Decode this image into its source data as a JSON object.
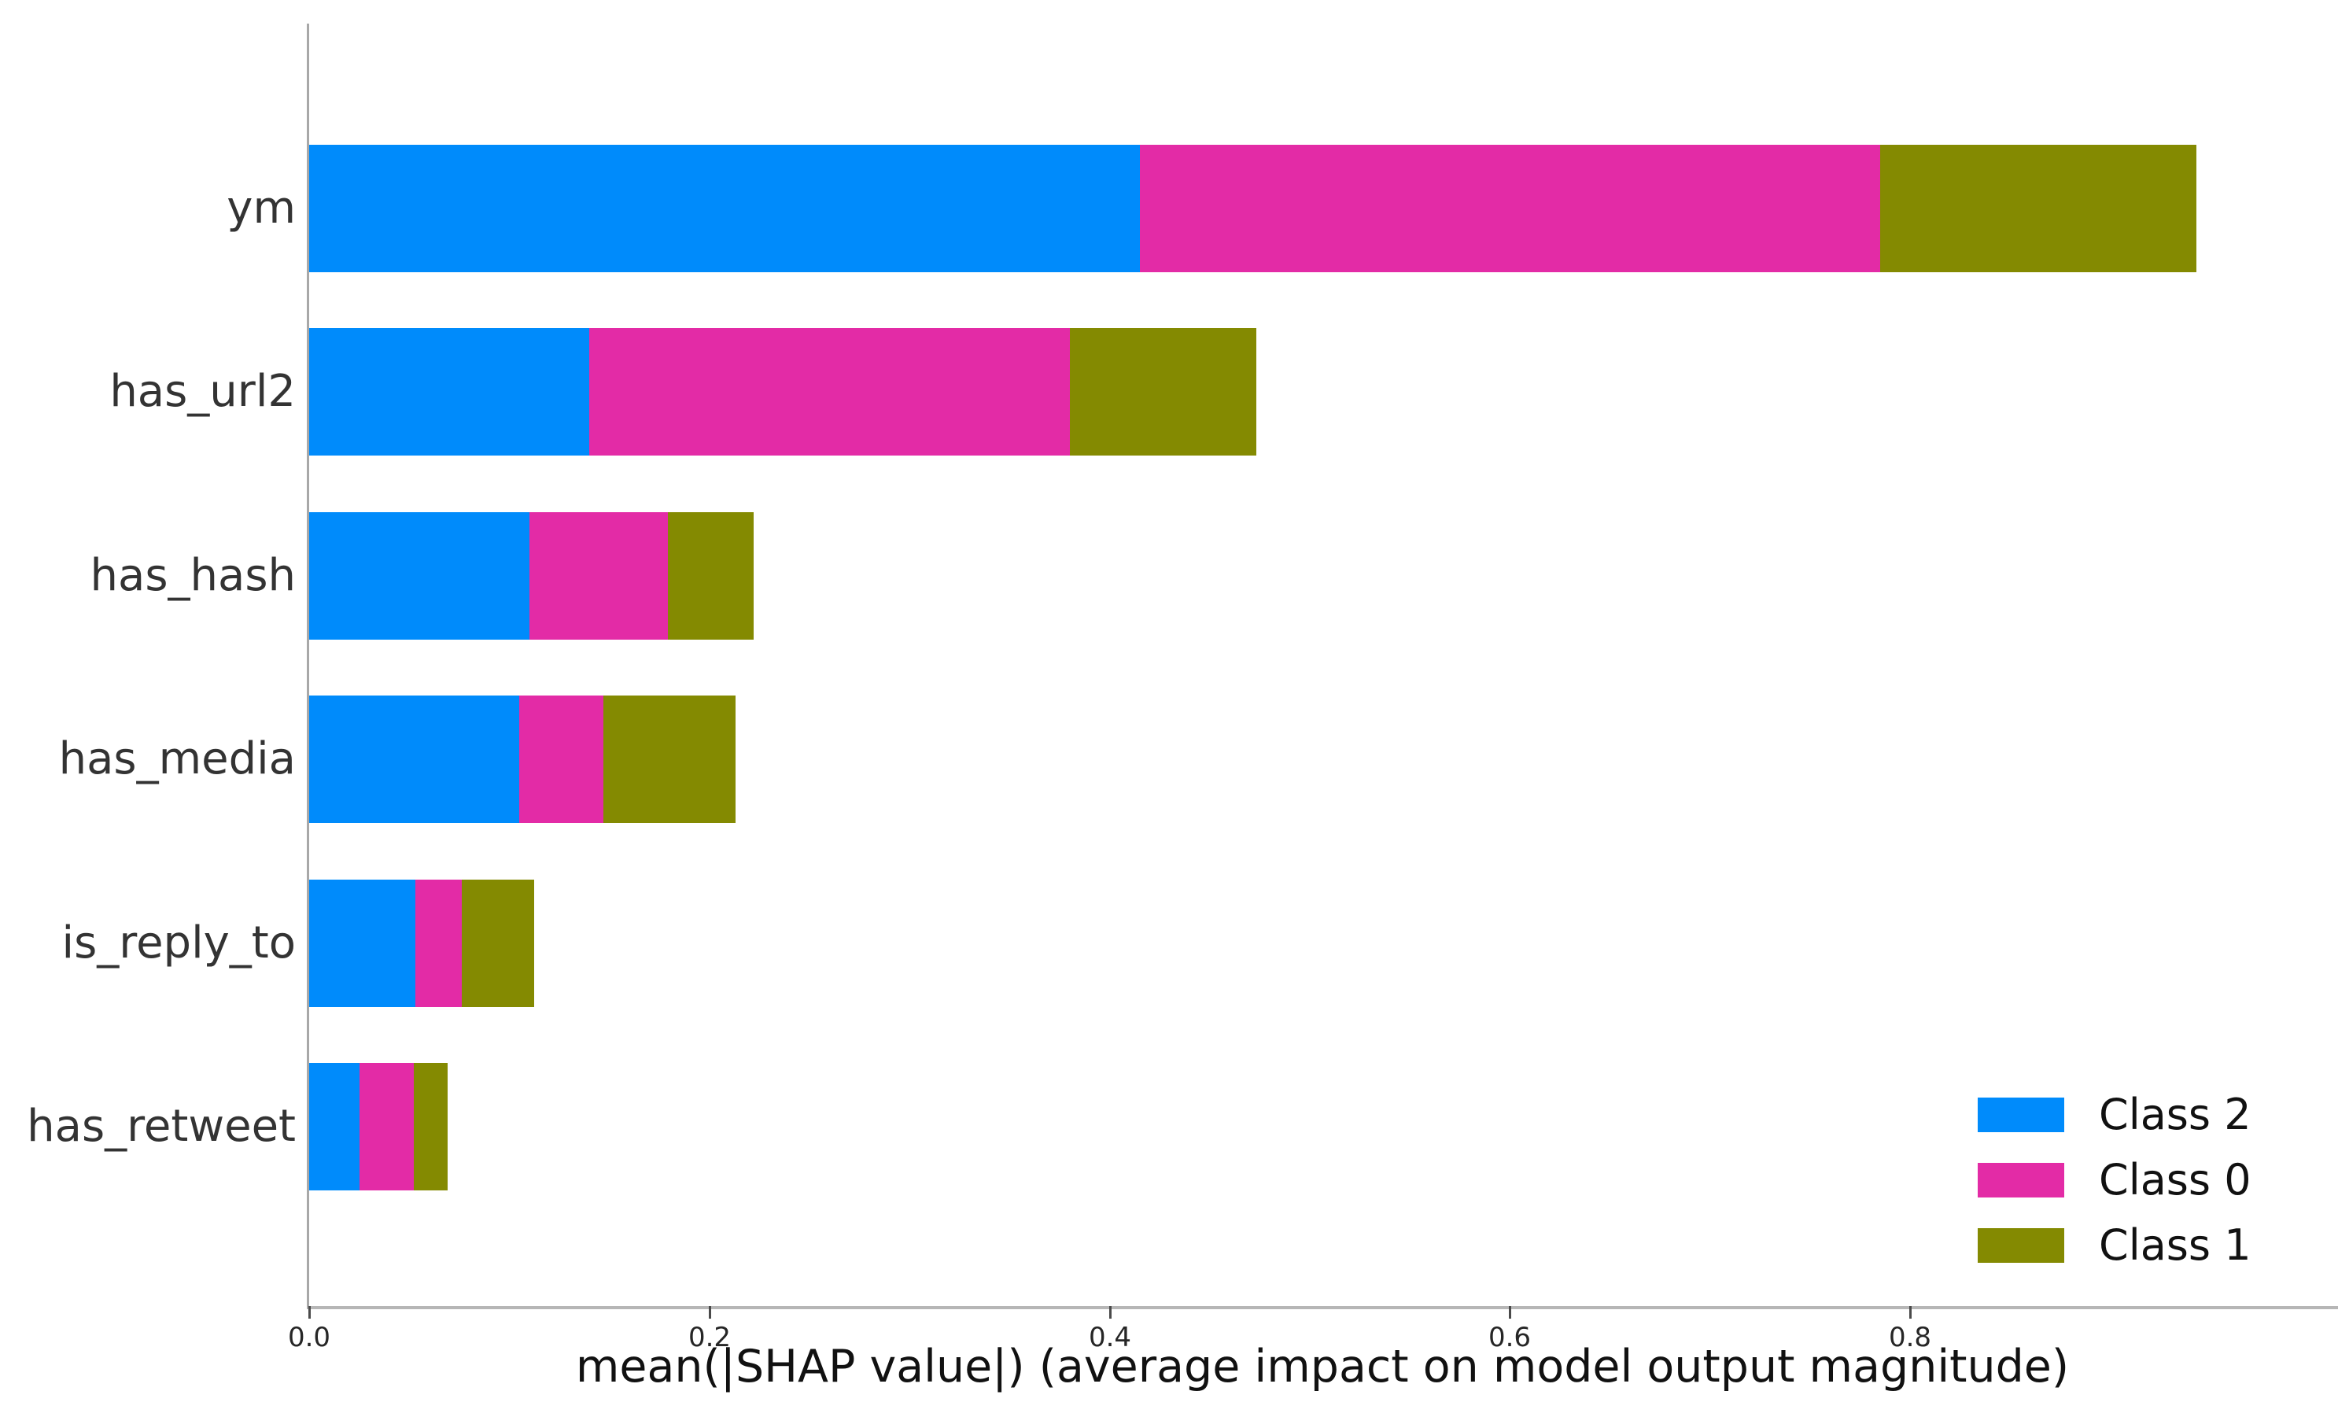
{
  "chart_data": {
    "type": "bar",
    "orientation": "horizontal",
    "stacked": true,
    "title": "",
    "xlabel": "mean(|SHAP value|) (average impact on model output magnitude)",
    "ylabel": "",
    "categories": [
      "ym",
      "has_url2",
      "has_hash",
      "has_media",
      "is_reply_to",
      "has_retweet"
    ],
    "series": [
      {
        "name": "Class 2",
        "color": "#008bfb",
        "values": [
          0.415,
          0.14,
          0.11,
          0.105,
          0.053,
          0.025
        ]
      },
      {
        "name": "Class 0",
        "color": "#e32ba6",
        "values": [
          0.37,
          0.24,
          0.069,
          0.042,
          0.023,
          0.027
        ]
      },
      {
        "name": "Class 1",
        "color": "#848a01",
        "values": [
          0.158,
          0.093,
          0.043,
          0.066,
          0.036,
          0.017
        ]
      }
    ],
    "xlim": [
      0.0,
      1.01
    ],
    "xticks": [
      0.0,
      0.2,
      0.4,
      0.6,
      0.8
    ],
    "xtick_labels": [
      "0.0",
      "0.2",
      "0.4",
      "0.6",
      "0.8"
    ],
    "grid": false,
    "legend_position": "lower right",
    "legend": [
      "Class 2",
      "Class 0",
      "Class 1"
    ]
  },
  "style": {
    "background": "#ffffff",
    "spine_color": "#a8a8a8",
    "bottom_spine_color": "#b6b6b6",
    "tick_mark_color": "#4a4a4a",
    "tick_label_color": "#262626",
    "category_label_color": "#333333",
    "axis_label_color": "#111111"
  }
}
